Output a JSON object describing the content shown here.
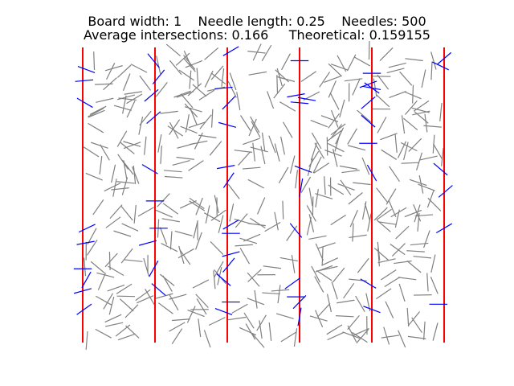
{
  "title": {
    "line1": "Board width: 1    Needle length: 0.25    Needles: 500",
    "line2": "Average intersections: 0.166     Theoretical: 0.159155"
  },
  "chart_data": {
    "type": "scatter",
    "board_width": 1,
    "needle_length": 0.25,
    "needles": 500,
    "average_intersections": 0.166,
    "theoretical": 0.159155,
    "board_lines_x": [
      0,
      1,
      2,
      3,
      4,
      5
    ],
    "xlim": [
      0,
      5
    ],
    "ylim": [
      0,
      4
    ],
    "axes_visible": false,
    "colors": {
      "board_line": "#ff0000",
      "needle_crossing": "#0000ff",
      "needle_no_crossing": "#808080"
    },
    "crossing_needles": [
      {
        "x": 0.05,
        "y": 3.7,
        "angle": -20
      },
      {
        "x": 0.02,
        "y": 3.55,
        "angle": 5
      },
      {
        "x": 0.03,
        "y": 3.25,
        "angle": -30
      },
      {
        "x": 0.06,
        "y": 1.55,
        "angle": 25
      },
      {
        "x": 0.04,
        "y": 1.35,
        "angle": 10
      },
      {
        "x": 0.0,
        "y": 1.0,
        "angle": 0
      },
      {
        "x": 0.05,
        "y": 0.85,
        "angle": 60
      },
      {
        "x": 0.0,
        "y": 0.7,
        "angle": 15
      },
      {
        "x": 0.02,
        "y": 0.45,
        "angle": 35
      },
      {
        "x": 0.98,
        "y": 3.82,
        "angle": -50
      },
      {
        "x": 1.05,
        "y": 3.6,
        "angle": 50
      },
      {
        "x": 0.95,
        "y": 3.35,
        "angle": 40
      },
      {
        "x": 0.98,
        "y": 3.05,
        "angle": 40
      },
      {
        "x": 0.93,
        "y": 2.35,
        "angle": -30
      },
      {
        "x": 1.0,
        "y": 1.92,
        "angle": 0
      },
      {
        "x": 0.9,
        "y": 1.35,
        "angle": 15
      },
      {
        "x": 1.05,
        "y": 1.55,
        "angle": 0
      },
      {
        "x": 0.98,
        "y": 1.0,
        "angle": 60
      },
      {
        "x": 1.05,
        "y": 0.72,
        "angle": -40
      },
      {
        "x": 2.05,
        "y": 3.95,
        "angle": 30
      },
      {
        "x": 1.95,
        "y": 3.45,
        "angle": 5
      },
      {
        "x": 2.02,
        "y": 3.25,
        "angle": 45
      },
      {
        "x": 2.0,
        "y": 2.95,
        "angle": -15
      },
      {
        "x": 1.98,
        "y": 2.38,
        "angle": 10
      },
      {
        "x": 2.02,
        "y": 2.2,
        "angle": 55
      },
      {
        "x": 2.05,
        "y": 1.6,
        "angle": 30
      },
      {
        "x": 2.05,
        "y": 1.48,
        "angle": 0
      },
      {
        "x": 2.05,
        "y": 1.2,
        "angle": 15
      },
      {
        "x": 2.02,
        "y": 1.05,
        "angle": 50
      },
      {
        "x": 1.95,
        "y": 0.85,
        "angle": -40
      },
      {
        "x": 2.05,
        "y": 0.55,
        "angle": 0
      },
      {
        "x": 1.95,
        "y": 0.42,
        "angle": -20
      },
      {
        "x": 3.0,
        "y": 3.82,
        "angle": 0
      },
      {
        "x": 3.0,
        "y": 3.25,
        "angle": -5
      },
      {
        "x": 2.95,
        "y": 3.35,
        "angle": 10
      },
      {
        "x": 3.1,
        "y": 3.3,
        "angle": -10
      },
      {
        "x": 3.05,
        "y": 2.35,
        "angle": -20
      },
      {
        "x": 3.02,
        "y": 2.1,
        "angle": 80
      },
      {
        "x": 2.95,
        "y": 1.52,
        "angle": -50
      },
      {
        "x": 2.9,
        "y": 0.8,
        "angle": 35
      },
      {
        "x": 2.95,
        "y": 0.62,
        "angle": 0
      },
      {
        "x": 3.0,
        "y": 0.55,
        "angle": 45
      },
      {
        "x": 3.0,
        "y": 0.35,
        "angle": 80
      },
      {
        "x": 4.0,
        "y": 3.65,
        "angle": 0
      },
      {
        "x": 3.95,
        "y": 3.5,
        "angle": 20
      },
      {
        "x": 4.0,
        "y": 3.45,
        "angle": -10
      },
      {
        "x": 3.95,
        "y": 3.25,
        "angle": 40
      },
      {
        "x": 4.0,
        "y": 3.45,
        "angle": -35
      },
      {
        "x": 3.95,
        "y": 3.0,
        "angle": -40
      },
      {
        "x": 3.95,
        "y": 2.7,
        "angle": 0
      },
      {
        "x": 4.0,
        "y": 2.3,
        "angle": -60
      },
      {
        "x": 3.95,
        "y": 0.8,
        "angle": -30
      },
      {
        "x": 4.0,
        "y": 0.45,
        "angle": -20
      },
      {
        "x": 5.0,
        "y": 3.85,
        "angle": 40
      },
      {
        "x": 4.95,
        "y": 3.75,
        "angle": -25
      },
      {
        "x": 4.95,
        "y": 2.35,
        "angle": -40
      },
      {
        "x": 5.02,
        "y": 2.05,
        "angle": 40
      },
      {
        "x": 5.0,
        "y": 1.55,
        "angle": 30
      },
      {
        "x": 4.92,
        "y": 0.52,
        "angle": 0
      }
    ]
  }
}
